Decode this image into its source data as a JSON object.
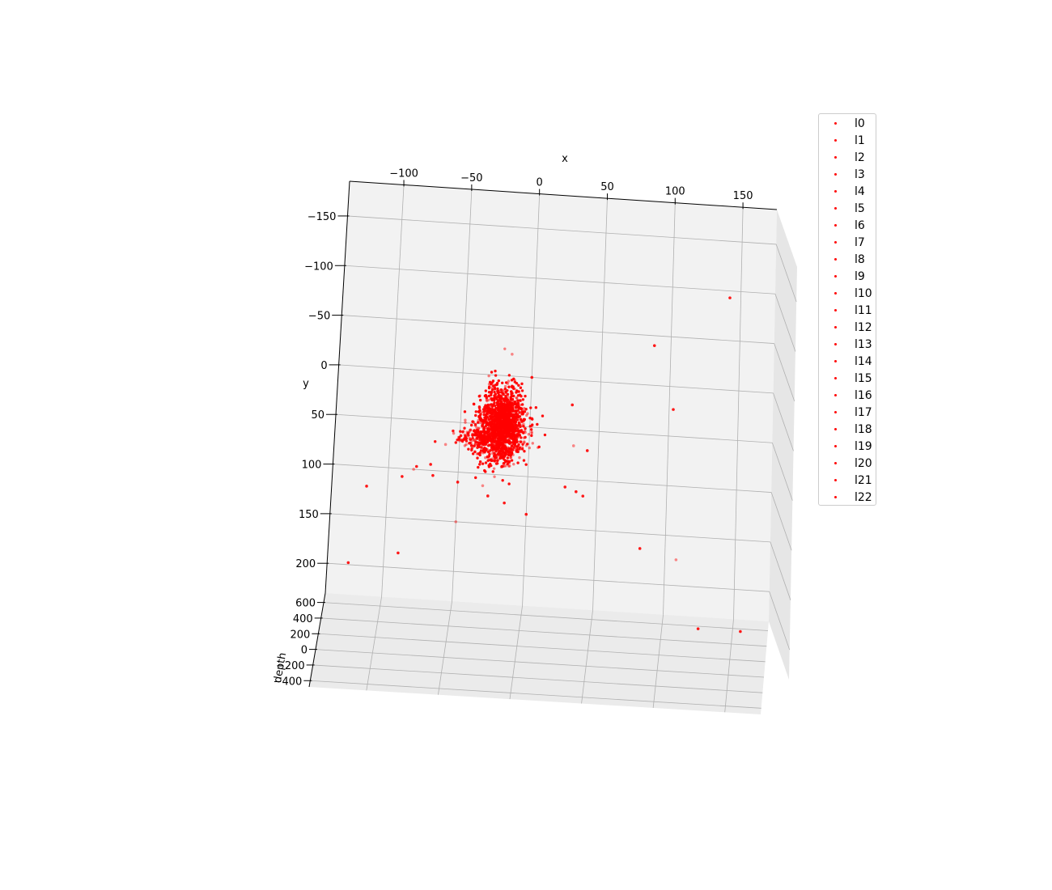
{
  "chart_data": {
    "type": "scatter",
    "projection": "3d",
    "xlabel": "x",
    "ylabel": "y",
    "zlabel": "depth",
    "x_ticks": [
      -100,
      -50,
      0,
      50,
      100,
      150
    ],
    "y_ticks": [
      -150,
      -100,
      -50,
      0,
      50,
      100,
      150,
      200
    ],
    "z_ticks": [
      600,
      400,
      200,
      0,
      -200,
      -400
    ],
    "x_tick_labels": [
      "−100",
      "−50",
      "0",
      "50",
      "100",
      "150"
    ],
    "y_tick_labels": [
      "−150",
      "−100",
      "−50",
      "0",
      "50",
      "100",
      "150",
      "200"
    ],
    "z_tick_labels": [
      "600",
      "400",
      "200",
      "0",
      "−200",
      "−400"
    ],
    "xlim": [
      -140,
      175
    ],
    "ylim": [
      -185,
      230
    ],
    "zlim": [
      -500,
      700
    ],
    "grid": true,
    "legend_position": "upper-right-outside",
    "point_color": "#ff0000",
    "series": [
      {
        "name": "l0"
      },
      {
        "name": "l1"
      },
      {
        "name": "l2"
      },
      {
        "name": "l3"
      },
      {
        "name": "l4"
      },
      {
        "name": "l5"
      },
      {
        "name": "l6"
      },
      {
        "name": "l7"
      },
      {
        "name": "l8"
      },
      {
        "name": "l9"
      },
      {
        "name": "l10"
      },
      {
        "name": "l11"
      },
      {
        "name": "l12"
      },
      {
        "name": "l13"
      },
      {
        "name": "l14"
      },
      {
        "name": "l15"
      },
      {
        "name": "l16"
      },
      {
        "name": "l17"
      },
      {
        "name": "l18"
      },
      {
        "name": "l19"
      },
      {
        "name": "l20"
      },
      {
        "name": "l21"
      },
      {
        "name": "l22"
      }
    ],
    "cluster": {
      "center_x": -20,
      "center_y": 50,
      "spread_x": 8,
      "spread_y": 18,
      "count": 1600
    },
    "outliers": [
      {
        "x": 142,
        "y": -93
      },
      {
        "x": 88,
        "y": -40
      },
      {
        "x": 103,
        "y": 23
      },
      {
        "x": -15,
        "y": -22
      },
      {
        "x": 0,
        "y": 0
      },
      {
        "x": 30,
        "y": 25
      },
      {
        "x": 42,
        "y": 70
      },
      {
        "x": 32,
        "y": 66
      },
      {
        "x": 27,
        "y": 108
      },
      {
        "x": 35,
        "y": 112
      },
      {
        "x": 40,
        "y": 116
      },
      {
        "x": -60,
        "y": 73
      },
      {
        "x": -70,
        "y": 94
      },
      {
        "x": -68,
        "y": 105
      },
      {
        "x": -80,
        "y": 97
      },
      {
        "x": -82,
        "y": 100
      },
      {
        "x": -90,
        "y": 108
      },
      {
        "x": -115,
        "y": 120
      },
      {
        "x": -50,
        "y": 110
      },
      {
        "x": -32,
        "y": 112
      },
      {
        "x": -28,
        "y": 122
      },
      {
        "x": -16,
        "y": 128
      },
      {
        "x": 0,
        "y": 138
      },
      {
        "x": -50,
        "y": 150
      },
      {
        "x": -90,
        "y": 185
      },
      {
        "x": -125,
        "y": 198
      },
      {
        "x": 82,
        "y": 165
      },
      {
        "x": 108,
        "y": 174
      },
      {
        "x": 125,
        "y": 242
      },
      {
        "x": 155,
        "y": 242
      }
    ]
  }
}
